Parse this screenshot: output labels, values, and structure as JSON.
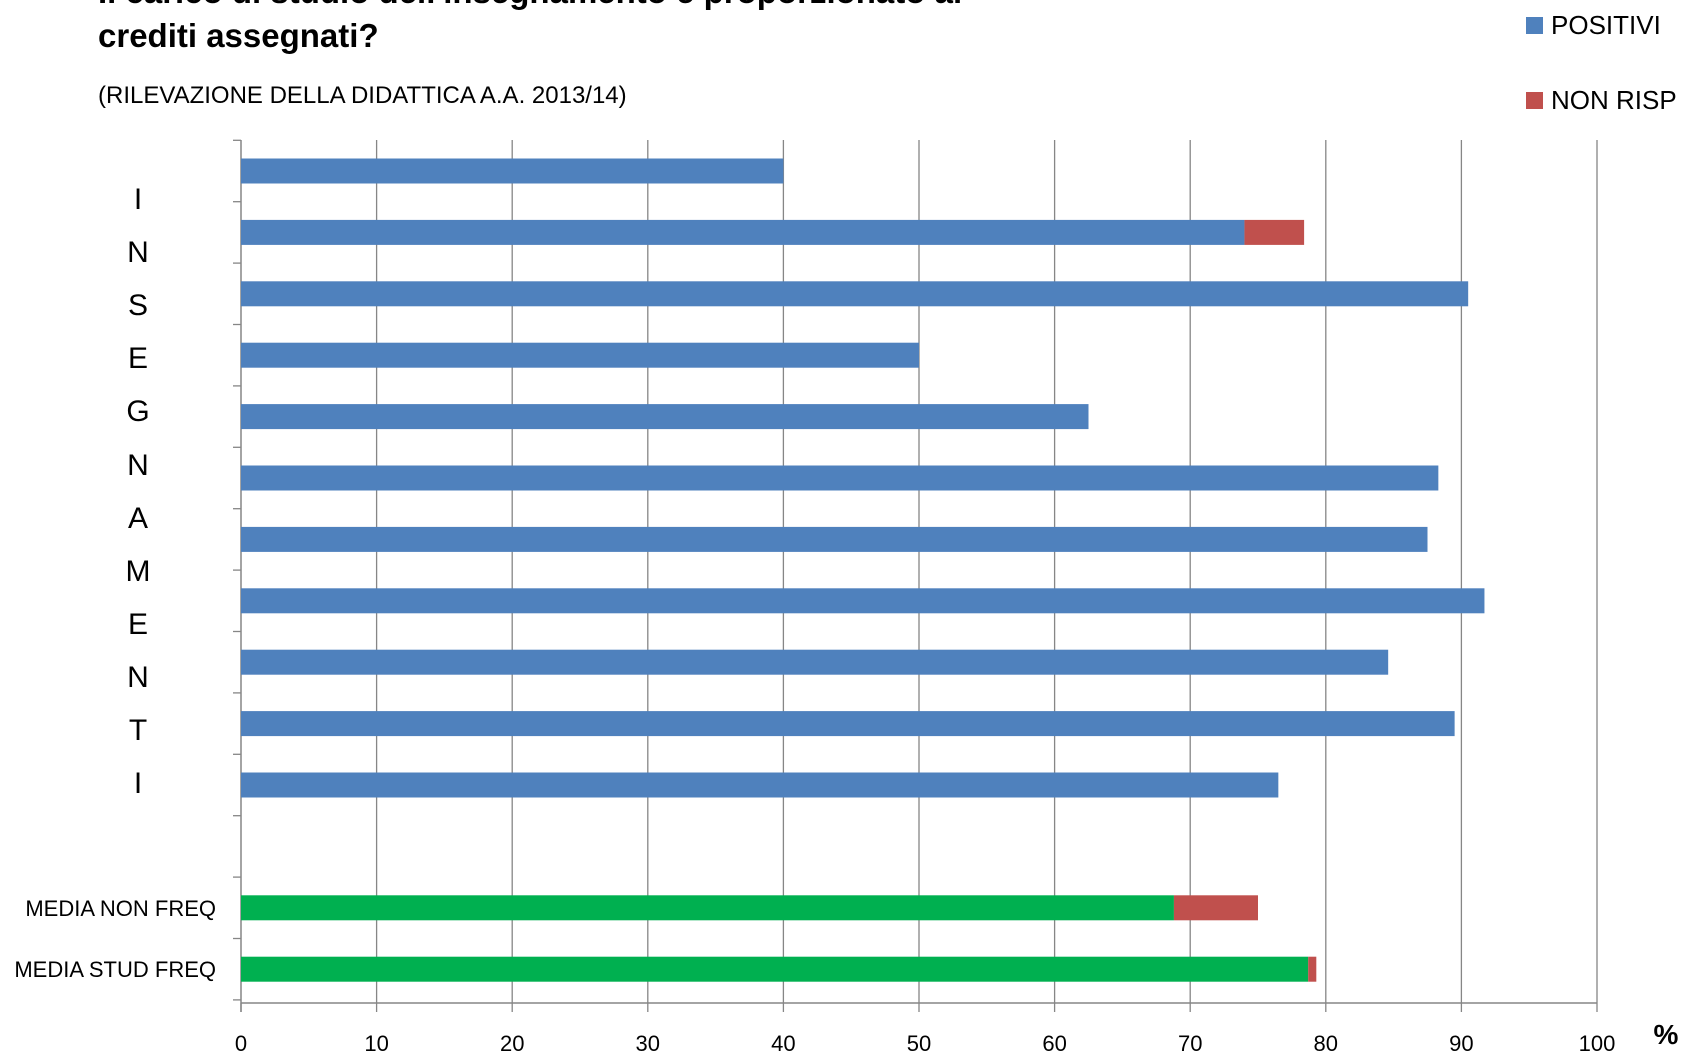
{
  "title": "Il carico di studio dell'insegnamento è proporzionato ai crediti assegnati?",
  "title_lines": [
    "Il carico di studio dell'insegnamento è proporzionato ai",
    "crediti assegnati?"
  ],
  "subtitle": "(RILEVAZIONE DELLA DIDATTICA A.A. 2013/14)",
  "y_axis_letters": [
    "I",
    "N",
    "S",
    "E",
    "G",
    "N",
    "A",
    "M",
    "E",
    "N",
    "T",
    "I"
  ],
  "x_unit": "%",
  "colors": {
    "positivi": "#4f81bd",
    "non_risp": "#c0504d",
    "media": "#00b050",
    "grid": "#868686",
    "axis": "#868686"
  },
  "chart_data": {
    "type": "bar",
    "orientation": "horizontal",
    "stacked": true,
    "xlim": [
      0,
      100
    ],
    "xticks": [
      "0",
      "10",
      "20",
      "30",
      "40",
      "50",
      "60",
      "70",
      "80",
      "90",
      "100"
    ],
    "grid": true,
    "legend": "top-right",
    "categories": [
      "",
      "",
      "",
      "",
      "",
      "",
      "",
      "",
      "",
      "",
      "",
      "",
      "MEDIA NON FREQ",
      "MEDIA STUD FREQ"
    ],
    "series": [
      {
        "name": "POSITIVI",
        "values": [
          40,
          74,
          90.5,
          50,
          62.5,
          88.3,
          87.5,
          91.7,
          84.6,
          89.5,
          76.5,
          null,
          68.8,
          78.7
        ]
      },
      {
        "name": "NON RISP",
        "values": [
          0,
          4.4,
          0,
          0,
          0,
          0,
          0,
          0,
          0,
          0,
          0,
          null,
          6.2,
          0.6
        ]
      }
    ],
    "media_rows": [
      12,
      13
    ]
  }
}
